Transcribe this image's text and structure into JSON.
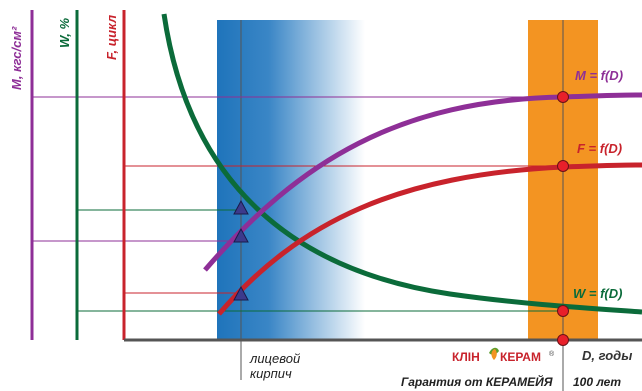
{
  "chart_data": {
    "type": "line",
    "title": "",
    "axes": {
      "m_label": "M, кгс/см²",
      "w_label": "W, %",
      "f_label": "F, цикл",
      "x_label": "D, годы"
    },
    "series": [
      {
        "name": "M = f(D)",
        "color": "#8e2f97"
      },
      {
        "name": "F = f(D)",
        "color": "#c8232c"
      },
      {
        "name": "W = f(D)",
        "color": "#0b6b3a"
      }
    ],
    "annotations": {
      "brick_line1": "лицевой",
      "brick_line2": "кирпич",
      "guarantee": "Гарантия от КЕРАМЕЙЯ",
      "years": "100 лет"
    },
    "brand": {
      "left": "КЛІН",
      "right": "КЕРАМ",
      "reg": "®"
    },
    "colors": {
      "m_axis": "#8e2f97",
      "w_axis": "#0b6b3a",
      "f_axis": "#c8232c",
      "zone_blue": "#1f74bb",
      "zone_orange": "#f39422",
      "marker_circle": "#e8202a",
      "marker_triangle": "#3c3a8c"
    }
  }
}
